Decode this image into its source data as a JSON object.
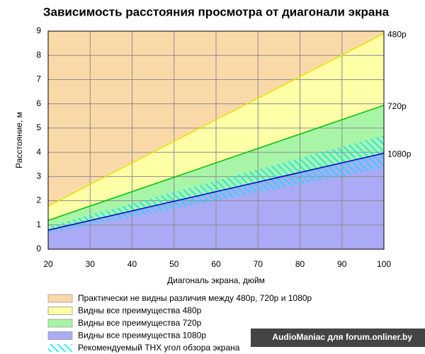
{
  "chart_data": {
    "type": "area",
    "title": "Зависимость расстояния просмотра от диагонали экрана",
    "x_label": "Диагональ экрана, дюйм",
    "y_label": "Расстояние, м",
    "x": [
      20,
      100
    ],
    "xlim": [
      20,
      100
    ],
    "ylim": [
      0,
      9
    ],
    "xticks": [
      20,
      30,
      40,
      50,
      60,
      70,
      80,
      90,
      100
    ],
    "yticks": [
      0,
      1,
      2,
      3,
      4,
      5,
      6,
      7,
      8,
      9
    ],
    "grid": true,
    "lines": [
      {
        "label": "480p",
        "color": "#e6e600",
        "values": [
          1.78,
          8.9
        ]
      },
      {
        "label": "720p",
        "color": "#00c000",
        "values": [
          1.19,
          5.94
        ]
      },
      {
        "label": "1080p",
        "color": "#0000c0",
        "values": [
          0.79,
          3.96
        ]
      }
    ],
    "thx_band": {
      "lower": [
        0.67,
        3.35
      ],
      "upper": [
        0.95,
        4.7
      ]
    },
    "legend": [
      {
        "name": "Практически не видны различия между 480p, 720p и 1080p",
        "color": "#fad9a8"
      },
      {
        "name": "Видны все преимущества 480p",
        "color": "#ffffa8"
      },
      {
        "name": "Видны все преимущества 720p",
        "color": "#a8f5a8"
      },
      {
        "name": "Видны все преимущества 1080p",
        "color": "#aaaaf5"
      },
      {
        "name": "Рекомендуемый THX угол обзора экрана",
        "color": "#00e5ff"
      }
    ],
    "watermark": "AudioManiac для forum.onliner.by"
  }
}
